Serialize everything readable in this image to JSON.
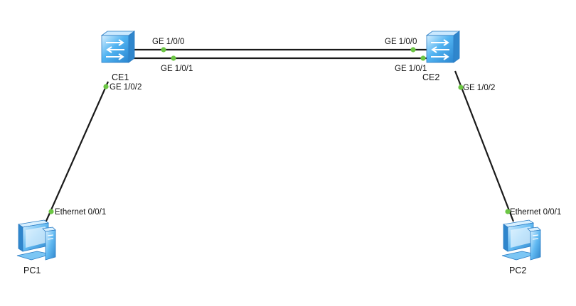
{
  "colors": {
    "link": "#1a1a1a",
    "port_dot": "#6cc644",
    "switch_face": "#3fa2e6",
    "switch_light": "#bfe4ff",
    "switch_dark": "#1f6fb5",
    "pc_face": "#58b2ee",
    "pc_light": "#cdeaff",
    "pc_dark": "#2a7cc4",
    "text": "#111111"
  },
  "devices": {
    "ce1": {
      "label": "CE1",
      "icon": "switch-icon"
    },
    "ce2": {
      "label": "CE2",
      "icon": "switch-icon"
    },
    "pc1": {
      "label": "PC1",
      "icon": "pc-icon"
    },
    "pc2": {
      "label": "PC2",
      "icon": "pc-icon"
    }
  },
  "ports": {
    "ce1_ge100": "GE 1/0/0",
    "ce1_ge101": "GE 1/0/1",
    "ce1_ge102": "GE 1/0/2",
    "ce2_ge100": "GE 1/0/0",
    "ce2_ge101": "GE 1/0/1",
    "ce2_ge102": "GE 1/0/2",
    "pc1_eth": "Ethernet 0/0/1",
    "pc2_eth": "Ethernet 0/0/1"
  }
}
